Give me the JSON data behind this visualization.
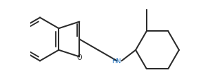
{
  "background_color": "#ffffff",
  "bond_color": "#2b2b2b",
  "heteroatom_O_color": "#2b2b2b",
  "heteroatom_N_color": "#1a6ebd",
  "line_width": 1.5,
  "figsize": [
    3.18,
    1.16
  ],
  "dpi": 100,
  "NH_label": "HN",
  "O_label": "O"
}
